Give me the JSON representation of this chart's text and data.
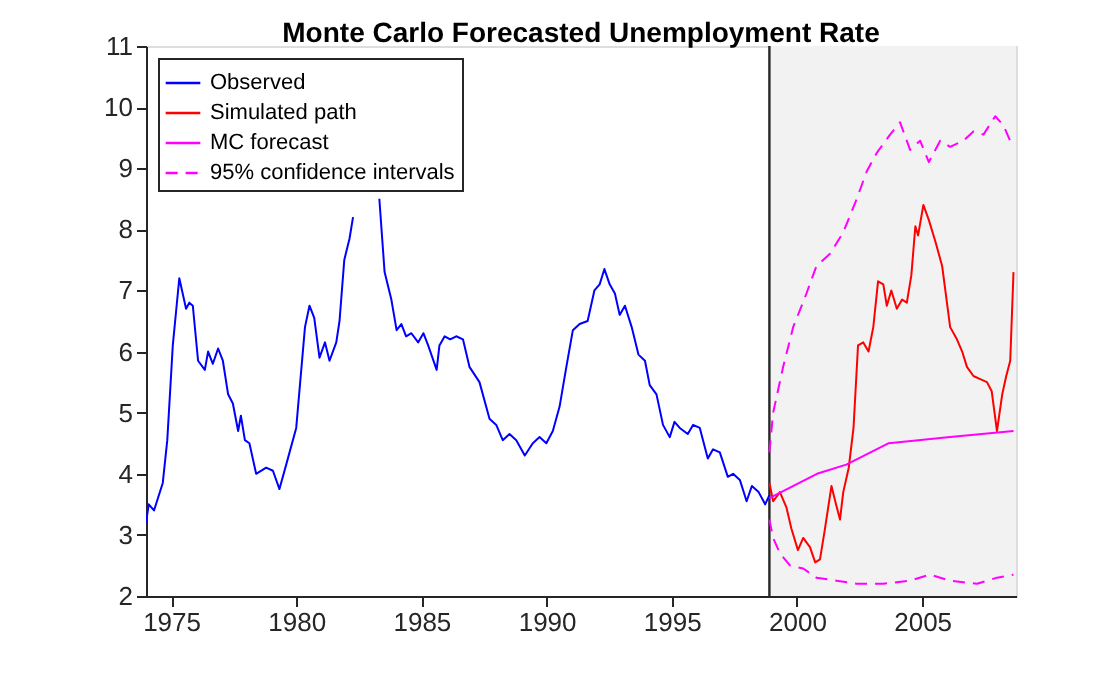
{
  "chart_data": {
    "type": "line",
    "title": "Monte Carlo Forecasted Unemployment Rate",
    "xlim": [
      1974,
      2008.75
    ],
    "xticks": [
      1975,
      1980,
      1985,
      1990,
      1995,
      2000,
      2005
    ],
    "ylim": [
      2,
      11
    ],
    "yticks": [
      2,
      3,
      4,
      5,
      6,
      7,
      8,
      9,
      10,
      11
    ],
    "grid": false,
    "legend": "top left",
    "bands": [
      {
        "axis": "x",
        "from": 1998.9,
        "to": 2008.75,
        "color": "#f2f2f2"
      }
    ],
    "ref_lines": [
      {
        "axis": "x",
        "value": 1998.9,
        "color": "#262626",
        "line_style": "solid"
      }
    ],
    "series": [
      {
        "name": "Observed",
        "color": "#0000ff",
        "line_style": "solid",
        "x": [
          1974.0,
          1974.11,
          1974.32,
          1974.67,
          1974.85,
          1975.07,
          1975.33,
          1975.6,
          1975.73,
          1975.87,
          1976.08,
          1976.35,
          1976.48,
          1976.67,
          1976.88,
          1977.07,
          1977.28,
          1977.47,
          1977.68,
          1977.79,
          1977.95,
          1978.13,
          1978.4,
          1978.8,
          1979.07,
          1979.33,
          1979.6,
          1980.0,
          1980.35,
          1980.53,
          1980.72,
          1980.93,
          1981.15,
          1981.33,
          1981.6,
          1981.73,
          1981.92,
          1982.13,
          1982.27,
          1982.45,
          1982.7,
          1983.0,
          1983.13,
          1983.32,
          1983.53,
          1983.8,
          1984.01,
          1984.2,
          1984.39,
          1984.6,
          1984.87,
          1985.08,
          1985.27,
          1985.61,
          1985.72,
          1985.93,
          1986.15,
          1986.39,
          1986.66,
          1986.92,
          1987.32,
          1987.72,
          1987.99,
          1988.25,
          1988.52,
          1988.79,
          1989.13,
          1989.45,
          1989.72,
          1989.99,
          1990.25,
          1990.52,
          1990.79,
          1991.05,
          1991.32,
          1991.64,
          1991.91,
          1992.12,
          1992.31,
          1992.52,
          1992.73,
          1992.92,
          1993.13,
          1993.4,
          1993.67,
          1993.93,
          1994.12,
          1994.39,
          1994.65,
          1994.92,
          1995.11,
          1995.32,
          1995.64,
          1995.85,
          1996.12,
          1996.44,
          1996.65,
          1996.92,
          1997.24,
          1997.45,
          1997.72,
          1997.99,
          1998.2,
          1998.47,
          1998.73,
          1998.9
        ],
        "values": [
          3.2,
          3.5,
          3.4,
          3.85,
          4.55,
          6.1,
          7.2,
          6.7,
          6.8,
          6.75,
          5.85,
          5.7,
          6.0,
          5.8,
          6.05,
          5.85,
          5.3,
          5.15,
          4.7,
          4.95,
          4.55,
          4.5,
          4.0,
          4.1,
          4.05,
          3.75,
          4.15,
          4.75,
          6.4,
          6.75,
          6.55,
          5.9,
          6.15,
          5.85,
          6.15,
          6.5,
          7.5,
          7.85,
          8.2,
          null,
          null,
          null,
          null,
          8.5,
          7.3,
          6.85,
          6.35,
          6.45,
          6.25,
          6.3,
          6.15,
          6.3,
          6.1,
          5.7,
          6.1,
          6.25,
          6.2,
          6.25,
          6.2,
          5.75,
          5.5,
          4.9,
          4.8,
          4.55,
          4.65,
          4.55,
          4.3,
          4.5,
          4.6,
          4.5,
          4.7,
          5.1,
          5.75,
          6.35,
          6.45,
          6.5,
          7.0,
          7.1,
          7.35,
          7.1,
          6.95,
          6.6,
          6.75,
          6.4,
          5.95,
          5.85,
          5.45,
          5.3,
          4.8,
          4.6,
          4.85,
          4.75,
          4.65,
          4.8,
          4.75,
          4.25,
          4.4,
          4.35,
          3.95,
          4.0,
          3.9,
          3.55,
          3.8,
          3.7,
          3.5,
          3.65
        ]
      },
      {
        "name": "Simulated path",
        "color": "#ff0000",
        "line_style": "solid",
        "x": [
          1998.9,
          1999.05,
          1999.32,
          1999.58,
          1999.78,
          2000.04,
          2000.25,
          2000.52,
          2000.73,
          2000.92,
          2001.1,
          2001.38,
          2001.53,
          2001.72,
          2001.85,
          2002.07,
          2002.26,
          2002.44,
          2002.65,
          2002.86,
          2003.05,
          2003.24,
          2003.45,
          2003.59,
          2003.77,
          2003.99,
          2004.2,
          2004.39,
          2004.57,
          2004.73,
          2004.84,
          2005.05,
          2005.27,
          2005.53,
          2005.8,
          2006.12,
          2006.39,
          2006.6,
          2006.79,
          2007.05,
          2007.32,
          2007.59,
          2007.78,
          2007.99,
          2008.2,
          2008.36,
          2008.52,
          2008.65
        ],
        "values": [
          3.85,
          3.55,
          3.7,
          3.45,
          3.1,
          2.75,
          2.95,
          2.8,
          2.55,
          2.6,
          3.05,
          3.8,
          3.55,
          3.25,
          3.7,
          4.1,
          4.75,
          6.1,
          6.15,
          6.0,
          6.4,
          7.15,
          7.1,
          6.75,
          7.0,
          6.7,
          6.85,
          6.8,
          7.25,
          8.05,
          7.9,
          8.4,
          8.15,
          7.8,
          7.4,
          6.4,
          6.2,
          6.0,
          5.75,
          5.6,
          5.55,
          5.5,
          5.35,
          4.7,
          5.3,
          5.6,
          5.85,
          7.3
        ]
      },
      {
        "name": "MC forecast",
        "color": "#ff00ff",
        "line_style": "solid",
        "x": [
          1998.9,
          2000.8,
          2001.97,
          2003.67,
          2006.12,
          2008.65
        ],
        "values": [
          3.6,
          4.0,
          4.15,
          4.5,
          4.6,
          4.7
        ]
      },
      {
        "name": "95% confidence intervals",
        "color": "#ff00ff",
        "line_style": "dashed",
        "x": [
          1998.9,
          1999.05,
          1999.45,
          1999.85,
          2000.38,
          2000.78,
          2001.32,
          2001.85,
          2002.39,
          2002.79,
          2003.19,
          2003.72,
          2004.12,
          2004.52,
          2004.92,
          2005.27,
          2005.72,
          2006.12,
          2006.65,
          2007.05,
          2007.45,
          2007.92,
          2008.25,
          2008.57
        ],
        "values": [
          4.35,
          5.0,
          5.75,
          6.4,
          6.95,
          7.4,
          7.6,
          7.95,
          8.5,
          8.95,
          9.25,
          9.55,
          9.75,
          9.3,
          9.45,
          9.1,
          9.45,
          9.35,
          9.45,
          9.6,
          9.55,
          9.85,
          9.7,
          9.4
        ]
      },
      {
        "color": "#ff00ff",
        "line_style": "dashed",
        "x": [
          1998.9,
          1999.05,
          1999.32,
          1999.72,
          2000.25,
          2000.78,
          2001.58,
          2002.39,
          2003.45,
          2004.52,
          2005.32,
          2006.12,
          2007.19,
          2007.99,
          2008.65
        ],
        "values": [
          3.25,
          2.95,
          2.7,
          2.5,
          2.45,
          2.3,
          2.25,
          2.2,
          2.2,
          2.25,
          2.35,
          2.25,
          2.2,
          2.3,
          2.35
        ]
      }
    ]
  }
}
